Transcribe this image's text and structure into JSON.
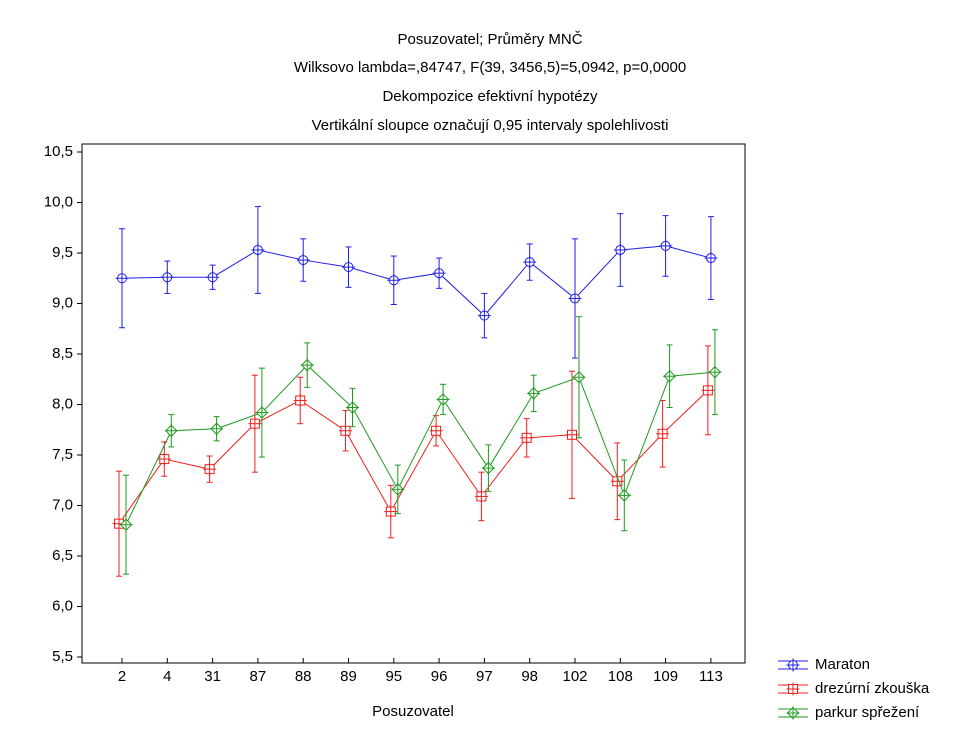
{
  "chart_data": {
    "type": "line",
    "title": "Posuzovatel; Průměry MNČ",
    "subtitle": [
      "Wilksovo lambda=,84747, F(39, 3456,5)=5,0942, p=0,0000",
      "Dekompozice efektivní hypotézy",
      "Vertikální sloupce označují 0,95 intervaly spolehlivosti"
    ],
    "x_label": "Posuzovatel",
    "categories": [
      "2",
      "4",
      "31",
      "87",
      "88",
      "89",
      "95",
      "96",
      "97",
      "98",
      "102",
      "108",
      "109",
      "113"
    ],
    "ylim": [
      5.5,
      10.5
    ],
    "yticks": [
      {
        "value": 5.5,
        "label": "5,5"
      },
      {
        "value": 6.0,
        "label": "6,0"
      },
      {
        "value": 6.5,
        "label": "6,5"
      },
      {
        "value": 7.0,
        "label": "7,0"
      },
      {
        "value": 7.5,
        "label": "7,5"
      },
      {
        "value": 8.0,
        "label": "8,0"
      },
      {
        "value": 8.5,
        "label": "8,5"
      },
      {
        "value": 9.0,
        "label": "9,0"
      },
      {
        "value": 9.5,
        "label": "9,5"
      },
      {
        "value": 10.0,
        "label": "10,0"
      },
      {
        "value": 10.5,
        "label": "10,5"
      }
    ],
    "grid": false,
    "legend": "bottom-right",
    "series": [
      {
        "name": "Maraton",
        "color": "#1f1fe6",
        "marker": "circle",
        "values": [
          9.25,
          9.26,
          9.26,
          9.53,
          9.43,
          9.36,
          9.23,
          9.3,
          8.88,
          9.41,
          9.05,
          9.53,
          9.57,
          9.45
        ],
        "errors": [
          0.49,
          0.16,
          0.12,
          0.43,
          0.21,
          0.2,
          0.24,
          0.15,
          0.22,
          0.18,
          0.59,
          0.36,
          0.3,
          0.41
        ]
      },
      {
        "name": "drezúrní zkouška",
        "color": "#f01e1e",
        "marker": "square",
        "values": [
          6.82,
          7.46,
          7.36,
          7.81,
          8.04,
          7.74,
          6.94,
          7.74,
          7.09,
          7.67,
          7.7,
          7.24,
          7.71,
          8.14
        ],
        "errors": [
          0.52,
          0.17,
          0.13,
          0.48,
          0.23,
          0.2,
          0.26,
          0.15,
          0.24,
          0.19,
          0.63,
          0.38,
          0.33,
          0.44
        ]
      },
      {
        "name": "parkur spřežení",
        "color": "#1e9a1e",
        "marker": "diamond",
        "values": [
          6.81,
          7.74,
          7.76,
          7.92,
          8.39,
          7.97,
          7.16,
          8.05,
          7.37,
          8.11,
          8.27,
          7.1,
          8.28,
          8.32
        ],
        "errors": [
          0.49,
          0.16,
          0.12,
          0.44,
          0.22,
          0.19,
          0.24,
          0.15,
          0.23,
          0.18,
          0.6,
          0.35,
          0.31,
          0.42
        ]
      }
    ]
  }
}
